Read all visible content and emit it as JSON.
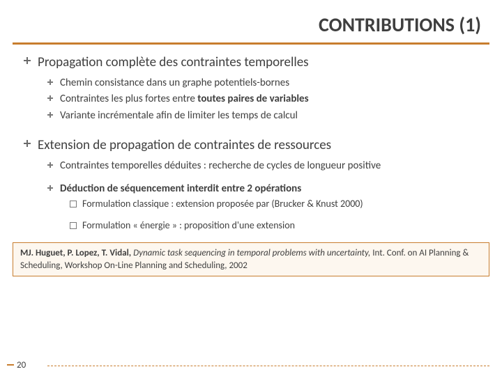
{
  "title": "CONTRIBUTIONS (1)",
  "section1": {
    "heading": "Propagation complète des contraintes temporelles",
    "items": [
      "Chemin consistance dans un graphe potentiels-bornes",
      "Contraintes les plus fortes entre ",
      "Variante incrémentale afin de limiter les temps de calcul"
    ],
    "item2_bold": "toutes paires de variables"
  },
  "section2": {
    "heading": "Extension de propagation de contraintes de ressources",
    "item1": "Contraintes temporelles déduites : recherche de cycles de longueur positive",
    "item2": "Déduction de séquencement interdit entre 2 opérations",
    "sub1_a": "Formulation classique : extension proposée par (Brucker & Knust 2000)",
    "sub1_b": "Formulation « énergie » : proposition d'une extension"
  },
  "citation": {
    "authors": "MJ. Huguet, P. Lopez, T. Vidal,",
    "title": "Dynamic task sequencing in temporal problems with uncertainty,",
    "venue": "Int. Conf. on AI Planning & Scheduling, Workshop On-Line Planning and Scheduling,  2002"
  },
  "page": "20",
  "colors": {
    "accent": "#c87d2e",
    "text": "#3f3f3f",
    "cite_bg": "#fdf7ef"
  }
}
